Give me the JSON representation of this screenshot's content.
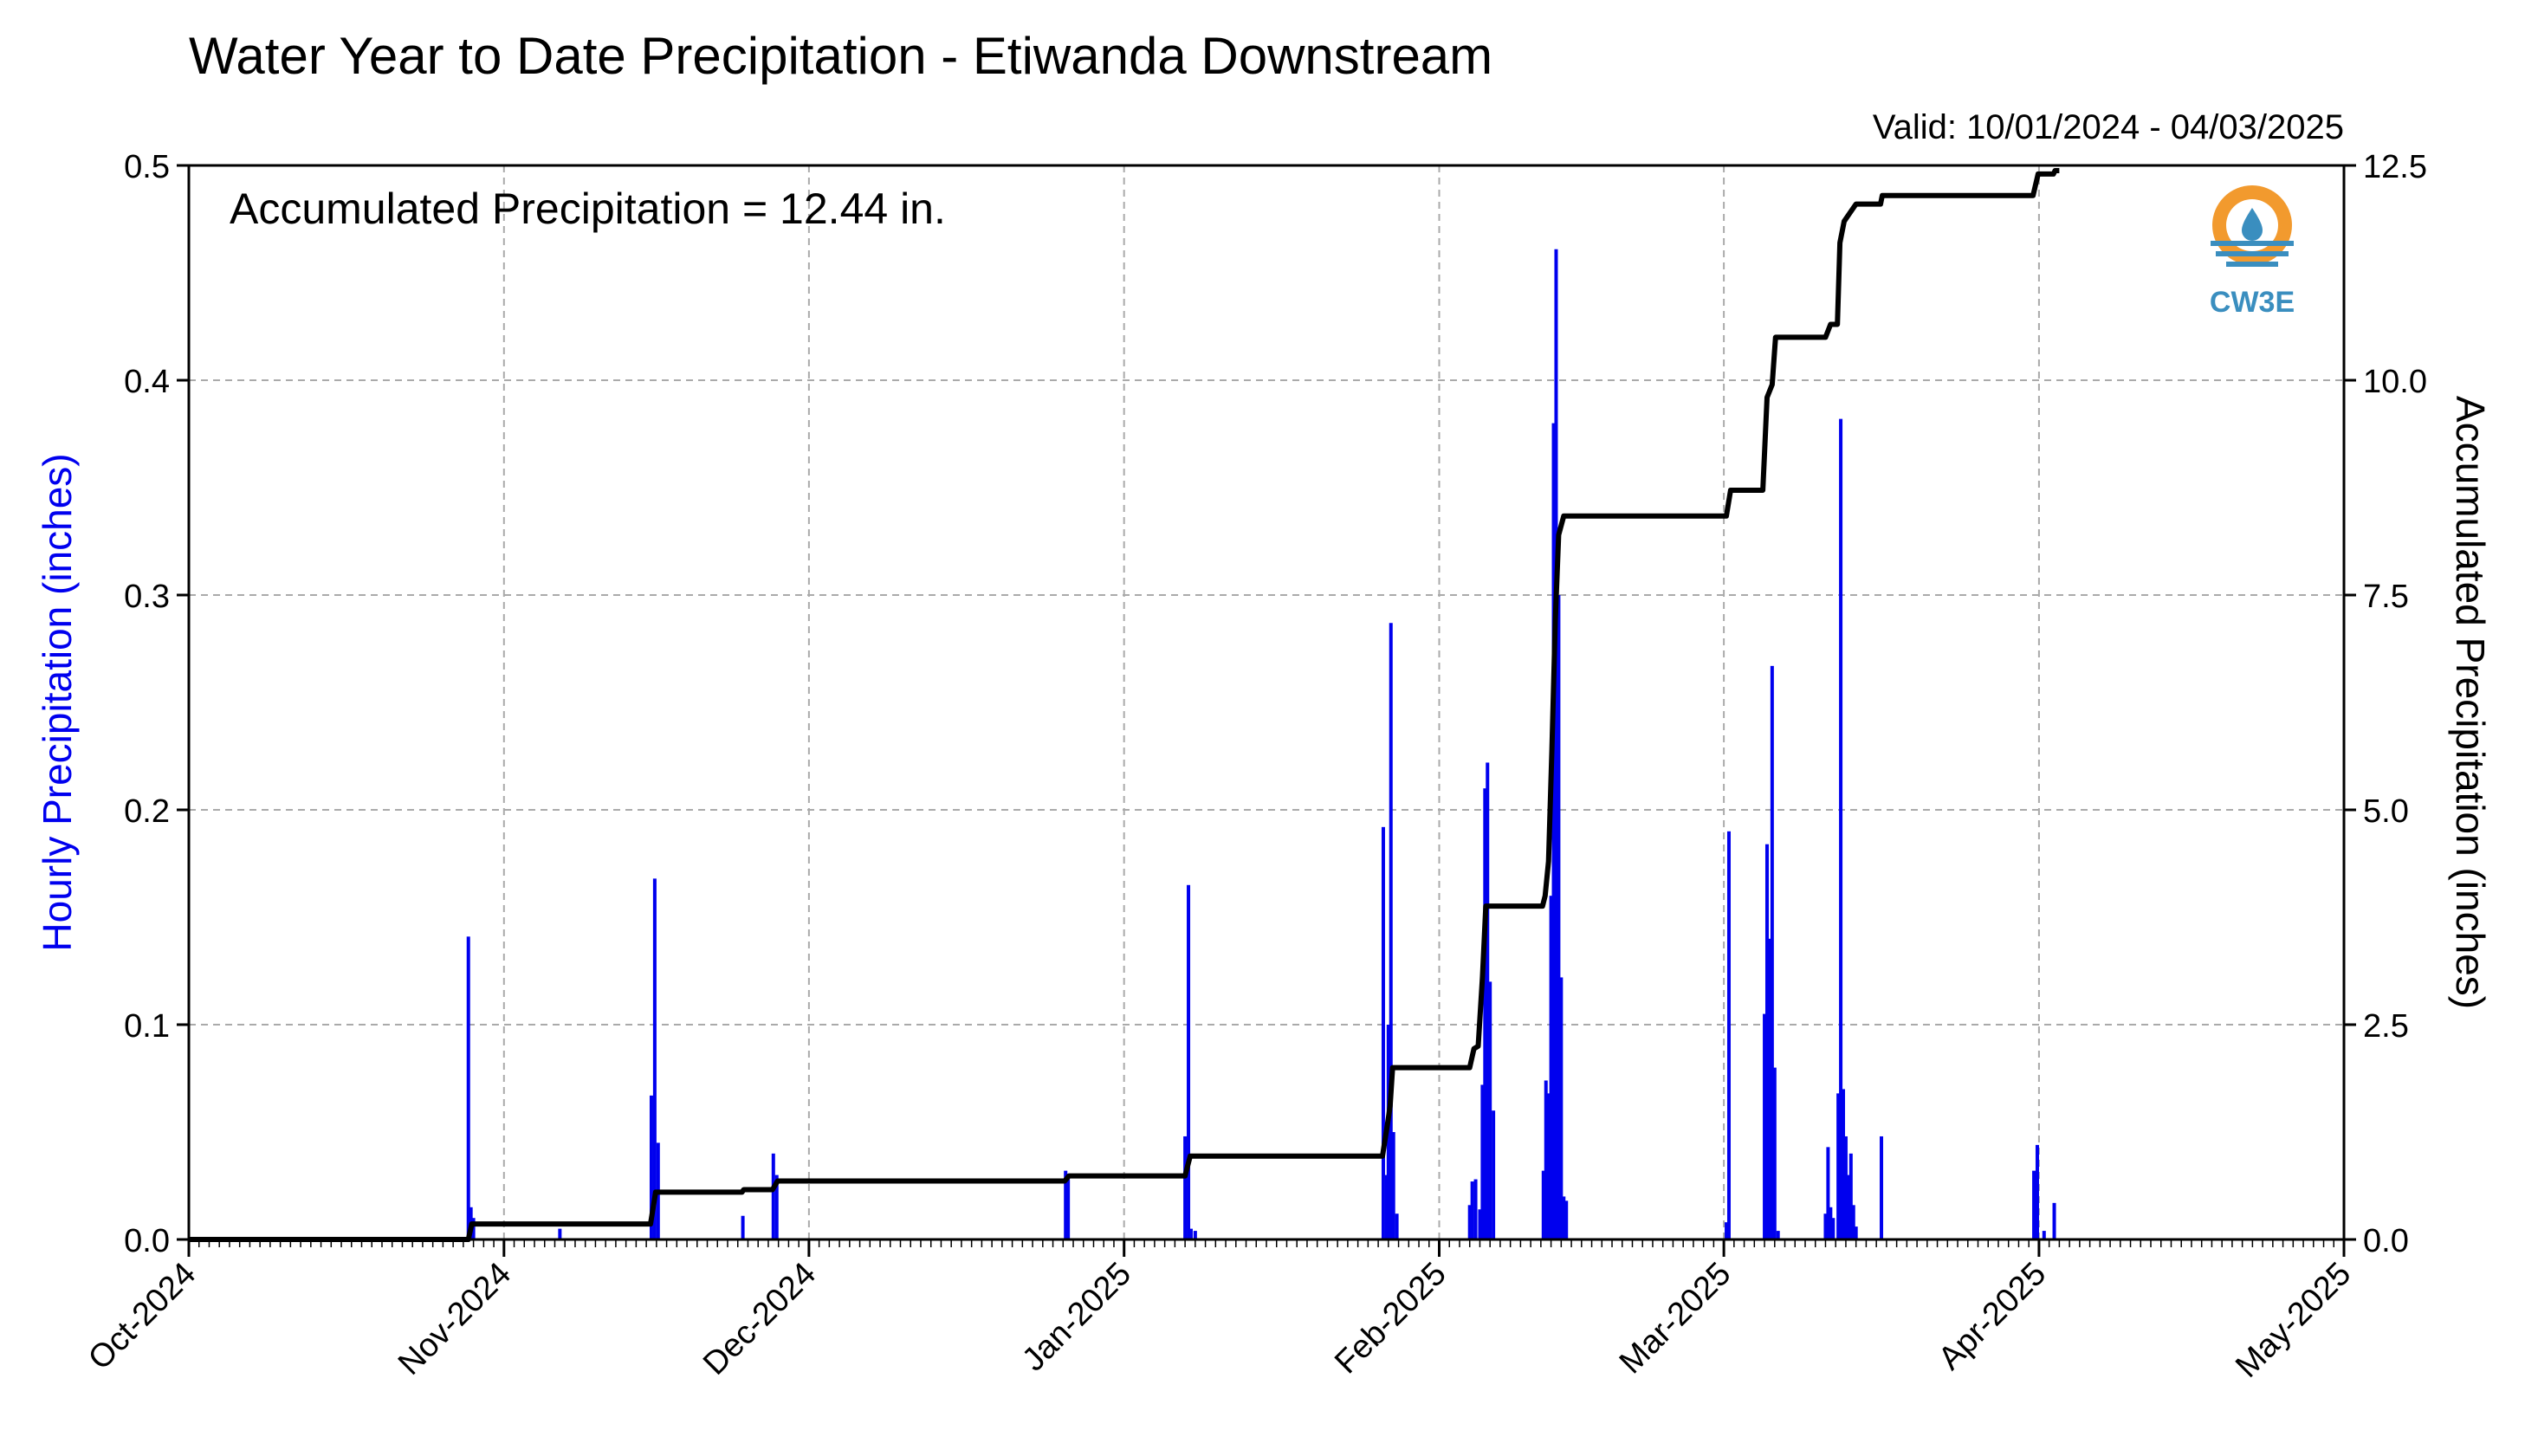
{
  "chart_data": {
    "type": "bar",
    "title": "Water Year to Date Precipitation - Etiwanda Downstream",
    "subtitle": "Valid: 10/01/2024 - 04/03/2025",
    "annotation": "Accumulated Precipitation = 12.44 in.",
    "logo_text": "CW3E",
    "left_axis": {
      "label": "Hourly Precipitation (inches)",
      "ylim": [
        0,
        0.5
      ],
      "ticks": [
        "0.0",
        "0.1",
        "0.2",
        "0.3",
        "0.4",
        "0.5"
      ],
      "color": "#0000ee"
    },
    "right_axis": {
      "label": "Accumulated Precipitation (inches)",
      "ylim": [
        0,
        12.5
      ],
      "ticks": [
        "0.0",
        "2.5",
        "5.0",
        "7.5",
        "10.0",
        "12.5"
      ],
      "color": "#000000"
    },
    "x_axis": {
      "start": "2024-10-01",
      "end": "2025-05-01",
      "tick_labels": [
        "Oct-2024",
        "Nov-2024",
        "Dec-2024",
        "Jan-2025",
        "Feb-2025",
        "Mar-2025",
        "Apr-2025",
        "May-2025"
      ],
      "tick_dates": [
        "2024-10-01",
        "2024-11-01",
        "2024-12-01",
        "2025-01-01",
        "2025-02-01",
        "2025-03-01",
        "2025-04-01",
        "2025-05-01"
      ]
    },
    "grid": true,
    "series": [
      {
        "type": "bar",
        "color": "#0000ee",
        "points": [
          [
            "2024-10-28T12:00",
            0.141
          ],
          [
            "2024-10-28T18:00",
            0.015
          ],
          [
            "2024-10-29T00:00",
            0.01
          ],
          [
            "2024-11-06T12:00",
            0.005
          ],
          [
            "2024-11-15T12:00",
            0.067
          ],
          [
            "2024-11-15T20:00",
            0.168
          ],
          [
            "2024-11-16T04:00",
            0.045
          ],
          [
            "2024-11-24T12:00",
            0.011
          ],
          [
            "2024-11-27T12:00",
            0.04
          ],
          [
            "2024-11-27T20:00",
            0.03
          ],
          [
            "2024-12-26T06:00",
            0.032
          ],
          [
            "2024-12-26T12:00",
            0.028
          ],
          [
            "2025-01-07T00:00",
            0.048
          ],
          [
            "2025-01-07T08:00",
            0.165
          ],
          [
            "2025-01-07T14:00",
            0.005
          ],
          [
            "2025-01-08T00:00",
            0.004
          ],
          [
            "2025-01-26T12:00",
            0.192
          ],
          [
            "2025-01-26T20:00",
            0.03
          ],
          [
            "2025-01-27T00:00",
            0.1
          ],
          [
            "2025-01-27T06:00",
            0.287
          ],
          [
            "2025-01-27T12:00",
            0.05
          ],
          [
            "2025-01-27T20:00",
            0.012
          ],
          [
            "2025-02-04T00:00",
            0.016
          ],
          [
            "2025-02-04T06:00",
            0.027
          ],
          [
            "2025-02-04T14:00",
            0.028
          ],
          [
            "2025-02-05T00:00",
            0.014
          ],
          [
            "2025-02-05T06:00",
            0.072
          ],
          [
            "2025-02-05T12:00",
            0.21
          ],
          [
            "2025-02-05T18:00",
            0.222
          ],
          [
            "2025-02-06T00:00",
            0.12
          ],
          [
            "2025-02-06T08:00",
            0.06
          ],
          [
            "2025-02-11T06:00",
            0.032
          ],
          [
            "2025-02-11T12:00",
            0.074
          ],
          [
            "2025-02-11T18:00",
            0.068
          ],
          [
            "2025-02-12T00:00",
            0.16
          ],
          [
            "2025-02-12T06:00",
            0.38
          ],
          [
            "2025-02-12T12:00",
            0.461
          ],
          [
            "2025-02-12T18:00",
            0.3
          ],
          [
            "2025-02-13T00:00",
            0.122
          ],
          [
            "2025-02-13T06:00",
            0.02
          ],
          [
            "2025-02-13T12:00",
            0.018
          ],
          [
            "2025-03-01T06:00",
            0.008
          ],
          [
            "2025-03-01T12:00",
            0.19
          ],
          [
            "2025-03-05T00:00",
            0.105
          ],
          [
            "2025-03-05T06:00",
            0.184
          ],
          [
            "2025-03-05T12:00",
            0.14
          ],
          [
            "2025-03-05T18:00",
            0.267
          ],
          [
            "2025-03-06T00:00",
            0.08
          ],
          [
            "2025-03-06T08:00",
            0.004
          ],
          [
            "2025-03-11T00:00",
            0.012
          ],
          [
            "2025-03-11T06:00",
            0.043
          ],
          [
            "2025-03-11T12:00",
            0.015
          ],
          [
            "2025-03-11T18:00",
            0.01
          ],
          [
            "2025-03-12T06:00",
            0.068
          ],
          [
            "2025-03-12T12:00",
            0.382
          ],
          [
            "2025-03-12T18:00",
            0.07
          ],
          [
            "2025-03-13T00:00",
            0.048
          ],
          [
            "2025-03-13T06:00",
            0.03
          ],
          [
            "2025-03-13T12:00",
            0.04
          ],
          [
            "2025-03-13T18:00",
            0.016
          ],
          [
            "2025-03-14T00:00",
            0.006
          ],
          [
            "2025-03-16T12:00",
            0.048
          ],
          [
            "2025-03-31T12:00",
            0.032
          ],
          [
            "2025-03-31T20:00",
            0.044
          ],
          [
            "2025-04-01T12:00",
            0.004
          ],
          [
            "2025-04-02T12:00",
            0.017
          ]
        ]
      },
      {
        "type": "line",
        "color": "#000000",
        "points": [
          [
            "2024-10-01T00:00",
            0.0
          ],
          [
            "2024-10-28T12:00",
            0.0
          ],
          [
            "2024-10-28T20:00",
            0.18
          ],
          [
            "2024-11-15T10:00",
            0.18
          ],
          [
            "2024-11-15T22:00",
            0.55
          ],
          [
            "2024-11-24T10:00",
            0.55
          ],
          [
            "2024-11-24T14:00",
            0.58
          ],
          [
            "2024-11-27T10:00",
            0.58
          ],
          [
            "2024-11-27T22:00",
            0.68
          ],
          [
            "2024-12-26T04:00",
            0.68
          ],
          [
            "2024-12-26T14:00",
            0.74
          ],
          [
            "2025-01-07T00:00",
            0.74
          ],
          [
            "2025-01-07T12:00",
            0.97
          ],
          [
            "2025-01-26T10:00",
            0.97
          ],
          [
            "2025-01-26T22:00",
            1.35
          ],
          [
            "2025-01-27T04:00",
            1.55
          ],
          [
            "2025-01-27T10:00",
            2.0
          ],
          [
            "2025-02-04T00:00",
            2.0
          ],
          [
            "2025-02-04T10:00",
            2.22
          ],
          [
            "2025-02-04T20:00",
            2.25
          ],
          [
            "2025-02-05T06:00",
            3.05
          ],
          [
            "2025-02-05T14:00",
            3.88
          ],
          [
            "2025-02-11T04:00",
            3.88
          ],
          [
            "2025-02-11T10:00",
            4.0
          ],
          [
            "2025-02-11T18:00",
            4.4
          ],
          [
            "2025-02-12T02:00",
            5.7
          ],
          [
            "2025-02-12T10:00",
            7.2
          ],
          [
            "2025-02-12T18:00",
            8.2
          ],
          [
            "2025-02-13T06:00",
            8.42
          ],
          [
            "2025-03-01T06:00",
            8.42
          ],
          [
            "2025-03-01T16:00",
            8.72
          ],
          [
            "2025-03-04T20:00",
            8.72
          ],
          [
            "2025-03-05T06:00",
            9.8
          ],
          [
            "2025-03-05T18:00",
            9.95
          ],
          [
            "2025-03-06T02:00",
            10.5
          ],
          [
            "2025-03-11T00:00",
            10.5
          ],
          [
            "2025-03-11T12:00",
            10.65
          ],
          [
            "2025-03-12T04:00",
            10.65
          ],
          [
            "2025-03-12T10:00",
            11.6
          ],
          [
            "2025-03-12T20:00",
            11.85
          ],
          [
            "2025-03-13T10:00",
            11.95
          ],
          [
            "2025-03-14T00:00",
            12.05
          ],
          [
            "2025-03-16T10:00",
            12.05
          ],
          [
            "2025-03-16T14:00",
            12.15
          ],
          [
            "2025-03-31T10:00",
            12.15
          ],
          [
            "2025-03-31T22:00",
            12.4
          ],
          [
            "2025-04-02T10:00",
            12.4
          ],
          [
            "2025-04-02T14:00",
            12.44
          ],
          [
            "2025-04-03T00:00",
            12.44
          ]
        ]
      }
    ]
  }
}
